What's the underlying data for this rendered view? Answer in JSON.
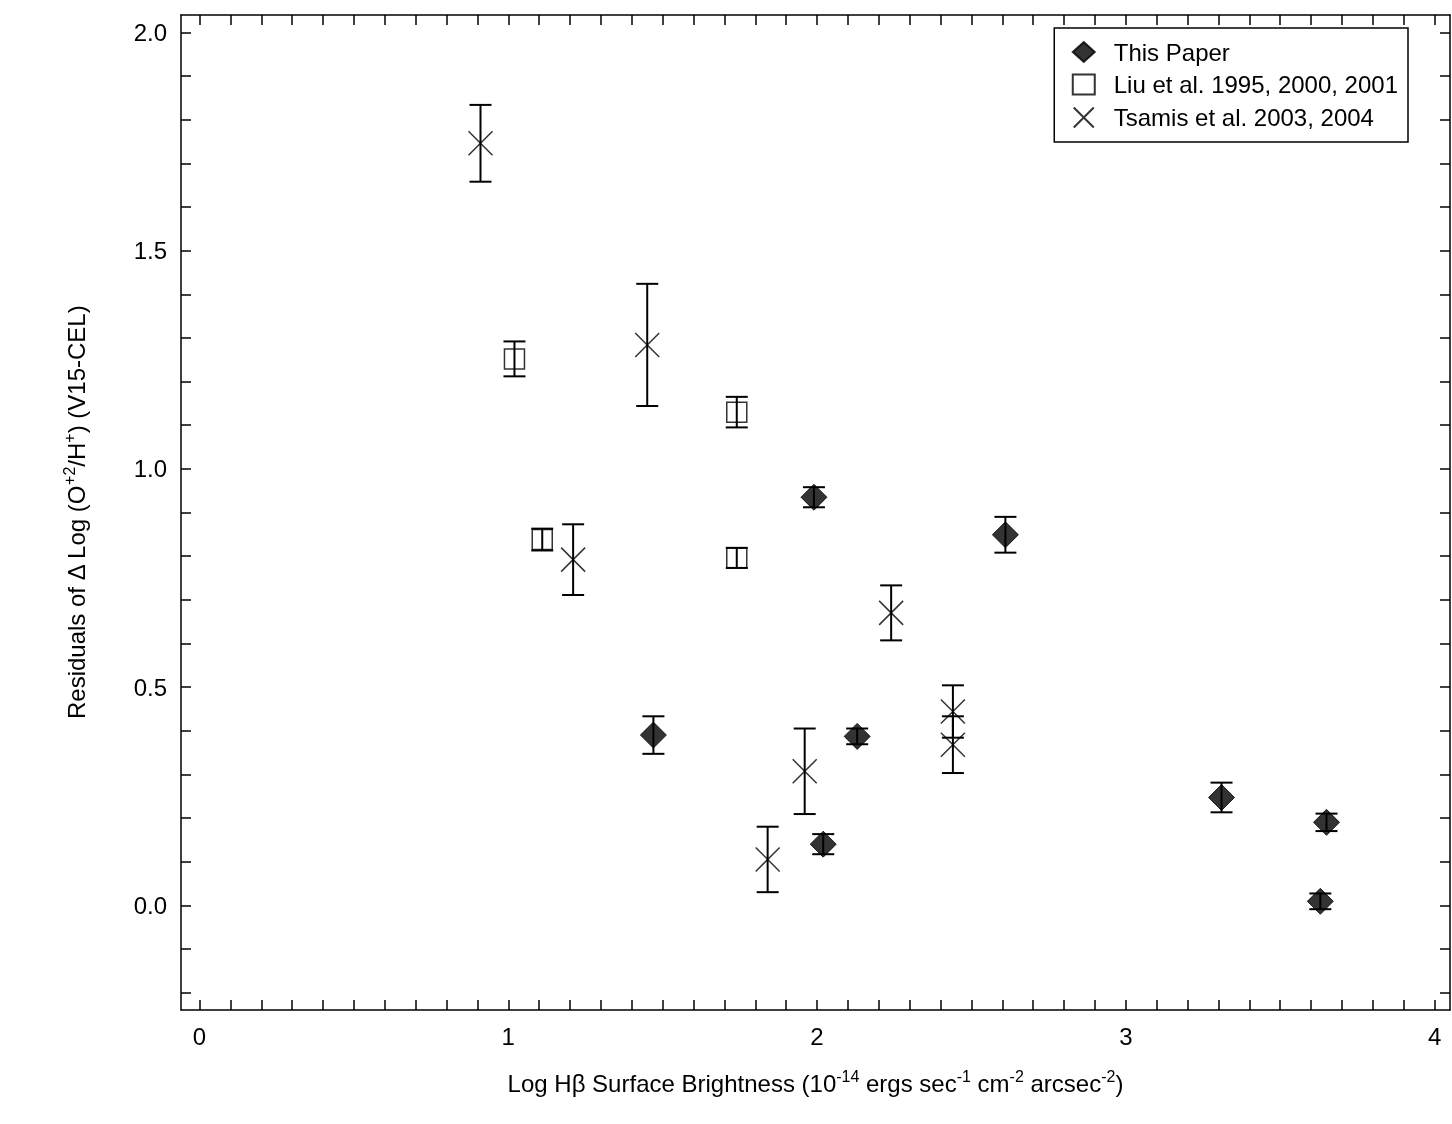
{
  "chart_data": {
    "type": "scatter",
    "xlabel": "Log Hβ Surface Brightness (10$^{-14}$ ergs sec$^{-1}$ cm$^{-2}$ arcsec$^{-2}$)",
    "ylabel": "Residuals of Δ Log (O$^{+2}$/H$^{+}$) (V15-CEL)",
    "xlim": [
      -0.06,
      4.05
    ],
    "ylim": [
      -0.24,
      2.04
    ],
    "xticks": [
      0,
      {
        "value": 0.1,
        "label": null
      },
      {
        "value": 0.2,
        "label": null
      },
      {
        "value": 0.3,
        "label": null
      },
      {
        "value": 0.4,
        "label": null
      },
      {
        "value": 0.5,
        "label": null
      },
      {
        "value": 0.6,
        "label": null
      },
      {
        "value": 0.7,
        "label": null
      },
      {
        "value": 0.8,
        "label": null
      },
      {
        "value": 0.9,
        "label": null
      },
      1,
      {
        "value": 1.1,
        "label": null
      },
      {
        "value": 1.2,
        "label": null
      },
      {
        "value": 1.3,
        "label": null
      },
      {
        "value": 1.4,
        "label": null
      },
      {
        "value": 1.5,
        "label": null
      },
      {
        "value": 1.6,
        "label": null
      },
      {
        "value": 1.7,
        "label": null
      },
      {
        "value": 1.8,
        "label": null
      },
      {
        "value": 1.9,
        "label": null
      },
      2,
      {
        "value": 2.1,
        "label": null
      },
      {
        "value": 2.2,
        "label": null
      },
      {
        "value": 2.3,
        "label": null
      },
      {
        "value": 2.4,
        "label": null
      },
      {
        "value": 2.5,
        "label": null
      },
      {
        "value": 2.6,
        "label": null
      },
      {
        "value": 2.7,
        "label": null
      },
      {
        "value": 2.8,
        "label": null
      },
      {
        "value": 2.9,
        "label": null
      },
      3,
      {
        "value": 3.1,
        "label": null
      },
      {
        "value": 3.2,
        "label": null
      },
      {
        "value": 3.3,
        "label": null
      },
      {
        "value": 3.4,
        "label": null
      },
      {
        "value": 3.5,
        "label": null
      },
      {
        "value": 3.6,
        "label": null
      },
      {
        "value": 3.7,
        "label": null
      },
      {
        "value": 3.8,
        "label": null
      },
      {
        "value": 3.9,
        "label": null
      },
      4
    ],
    "yticks": [
      {
        "value": -0.2,
        "label": null
      },
      {
        "value": -0.1,
        "label": null
      },
      {
        "value": 0,
        "label": "0.0"
      },
      {
        "value": 0.1,
        "label": null
      },
      {
        "value": 0.2,
        "label": null
      },
      {
        "value": 0.3,
        "label": null
      },
      {
        "value": 0.4,
        "label": null
      },
      {
        "value": 0.5,
        "label": "0.5"
      },
      {
        "value": 0.6,
        "label": null
      },
      {
        "value": 0.7,
        "label": null
      },
      {
        "value": 0.8,
        "label": null
      },
      {
        "value": 0.9,
        "label": null
      },
      {
        "value": 1,
        "label": "1.0"
      },
      {
        "value": 1.1,
        "label": null
      },
      {
        "value": 1.2,
        "label": null
      },
      {
        "value": 1.3,
        "label": null
      },
      {
        "value": 1.4,
        "label": null
      },
      {
        "value": 1.5,
        "label": "1.5"
      },
      {
        "value": 1.6,
        "label": null
      },
      {
        "value": 1.7,
        "label": null
      },
      {
        "value": 1.8,
        "label": null
      },
      {
        "value": 1.9,
        "label": null
      },
      {
        "value": 2,
        "label": "2.0"
      }
    ],
    "grid": false,
    "legend": "top right",
    "series": [
      {
        "name": "This Paper",
        "color": "#000000",
        "marker": "diamond",
        "x": [
          1.47,
          1.99,
          2.02,
          2.13,
          2.61,
          3.31,
          3.65,
          3.63
        ],
        "values": [
          0.39,
          0.935,
          0.14,
          0.387,
          0.849,
          0.247,
          0.19,
          0.009
        ],
        "errors": [
          0.043,
          0.023,
          0.023,
          0.018,
          0.041,
          0.034,
          0.02,
          0.018
        ]
      },
      {
        "name": "Liu et al. 1995, 2000, 2001",
        "color": "#000000",
        "marker": "square",
        "x": [
          1.02,
          1.11,
          1.74,
          1.74
        ],
        "values": [
          1.252,
          0.838,
          1.13,
          0.796
        ],
        "errors": [
          0.04,
          0.025,
          0.035,
          0.023
        ]
      },
      {
        "name": "Tsamis et al. 2003, 2004",
        "color": "#000000",
        "marker": "cross",
        "x": [
          0.91,
          1.45,
          1.21,
          1.84,
          1.96,
          2.24,
          2.44,
          2.44
        ],
        "values": [
          1.746,
          1.284,
          0.792,
          0.105,
          0.307,
          0.67,
          0.444,
          0.368
        ],
        "errors": [
          0.088,
          0.14,
          0.081,
          0.075,
          0.098,
          0.063,
          0.06,
          0.065
        ]
      }
    ]
  }
}
